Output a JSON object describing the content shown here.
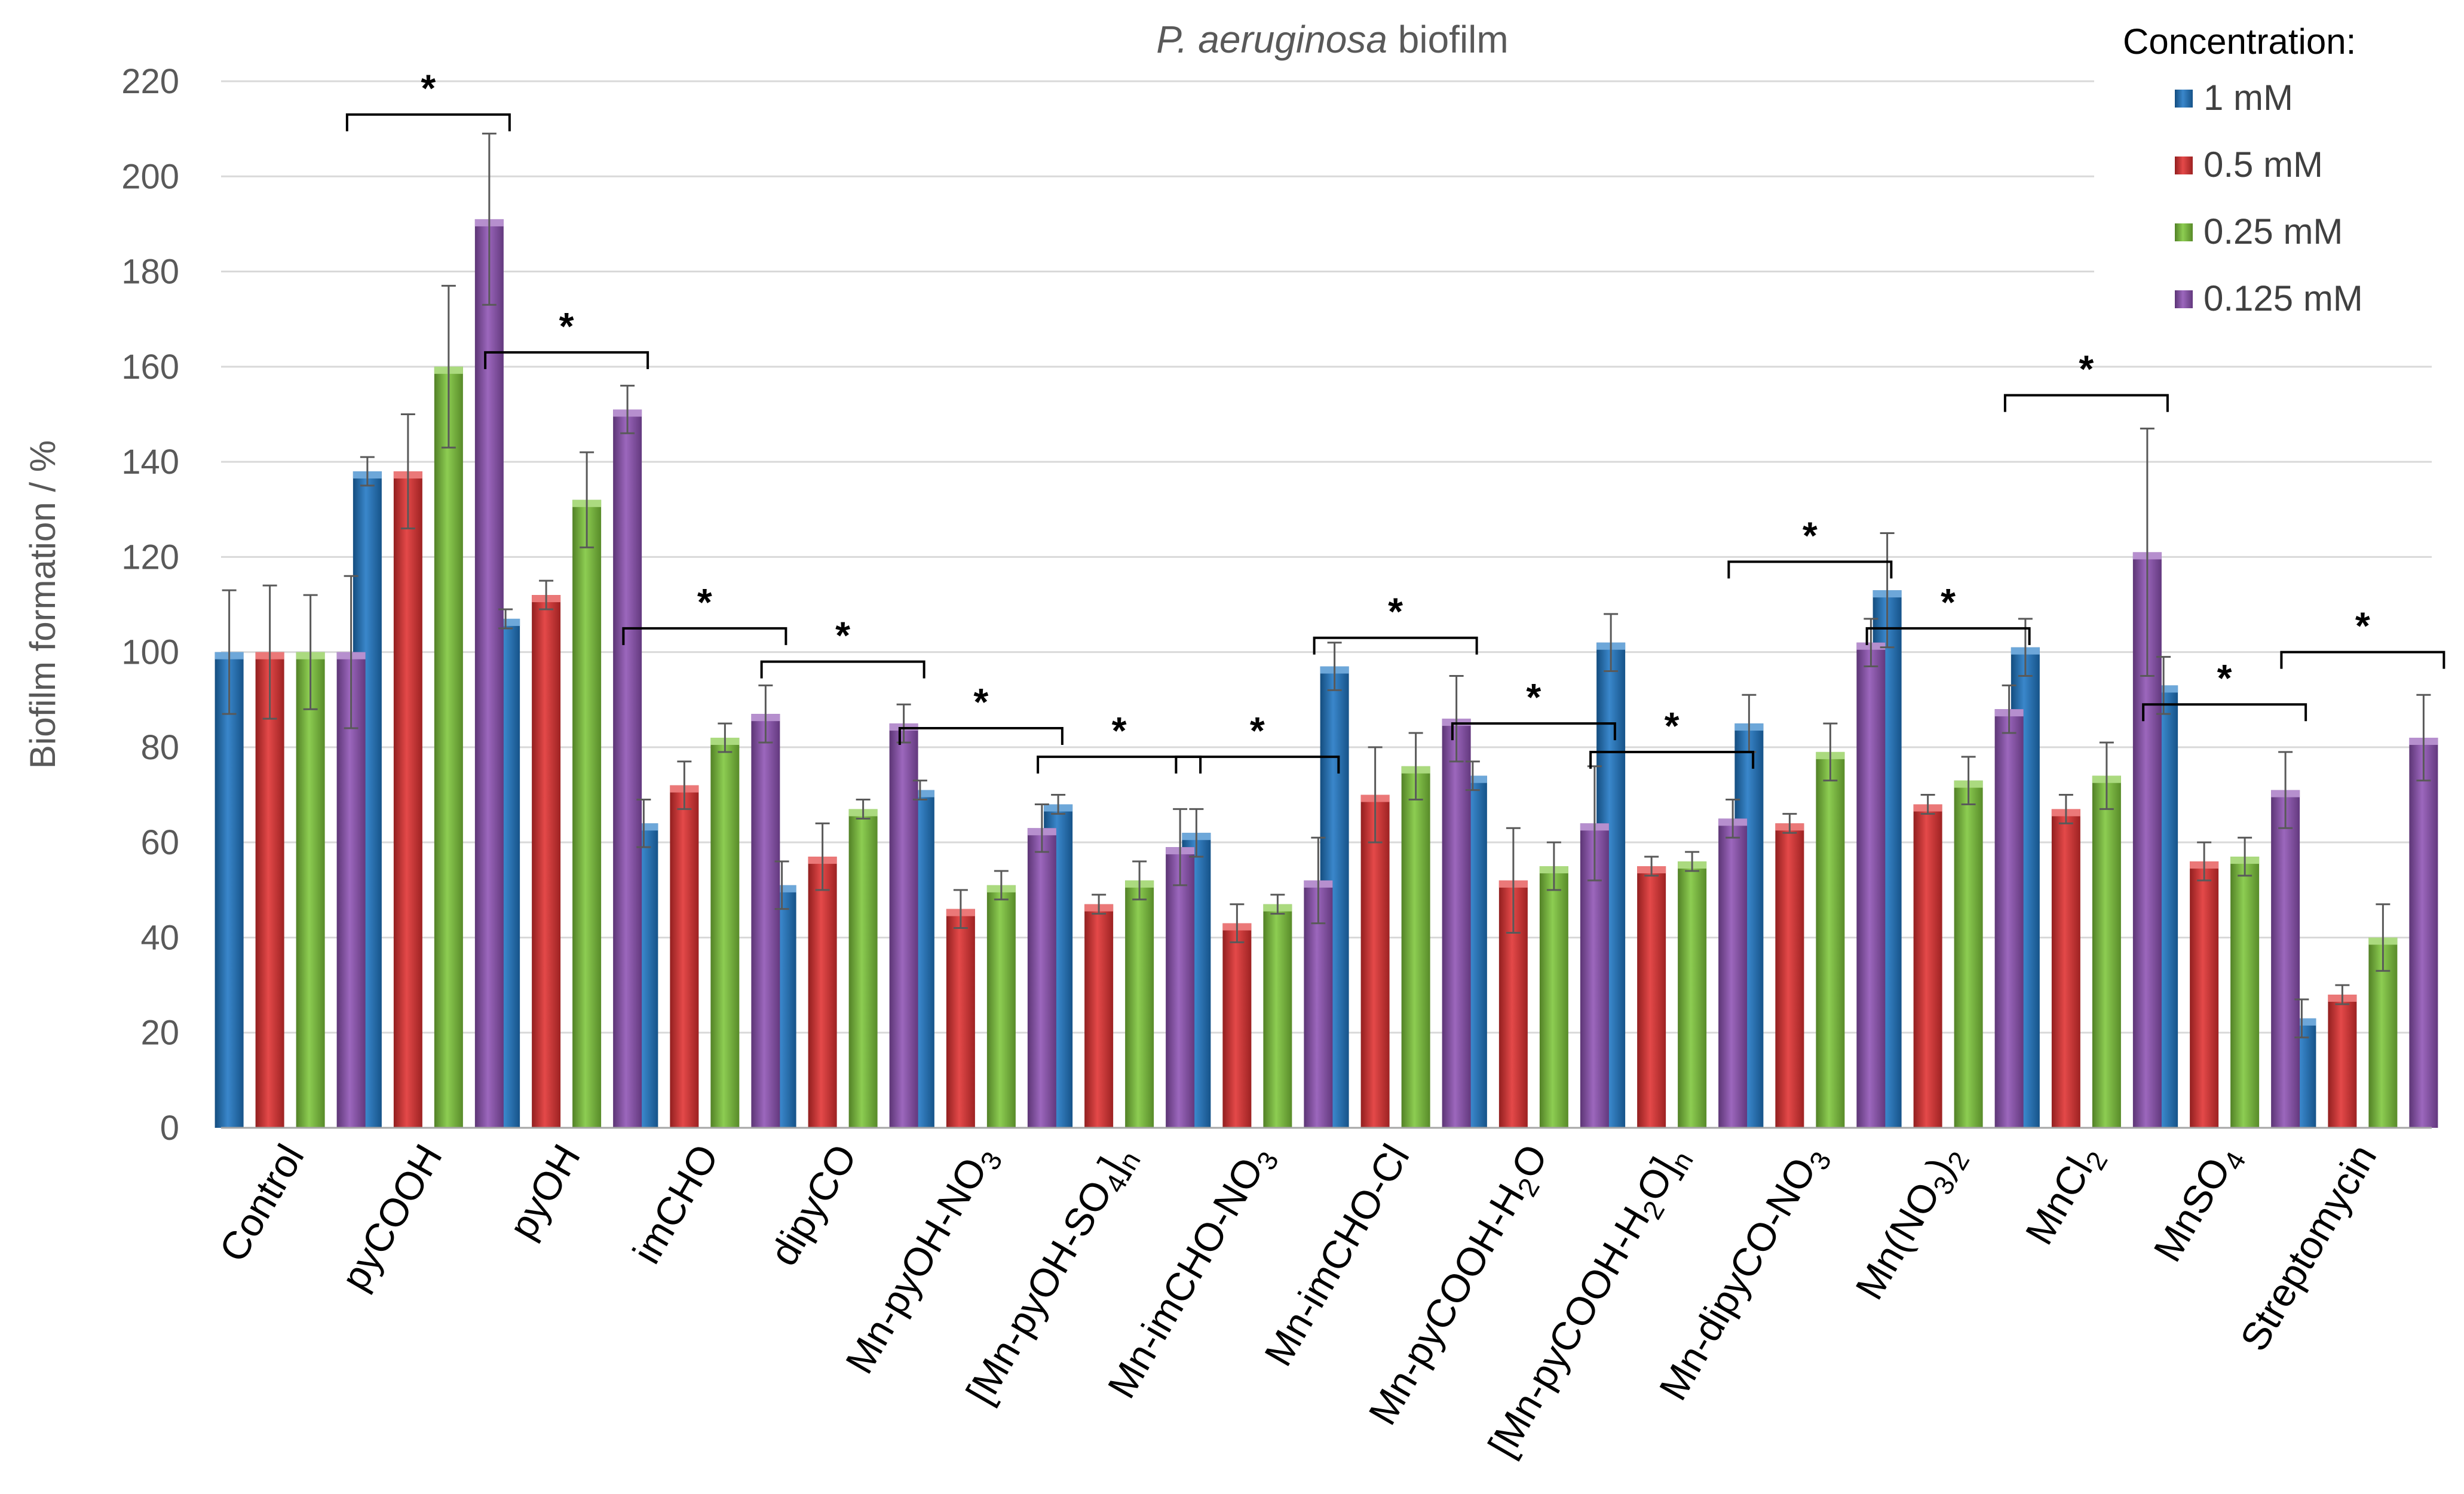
{
  "chart_data": {
    "type": "bar",
    "title_italic": "P. aeruginosa",
    "title_rest": " biofilm",
    "xlabel": "",
    "ylabel": "Biofilm formation / %",
    "ylim": [
      0,
      220
    ],
    "yticks": [
      0,
      20,
      40,
      60,
      80,
      100,
      120,
      140,
      160,
      180,
      200,
      220
    ],
    "grid": true,
    "legend_title": "Concentration:",
    "legend_position": "top-right",
    "significance_marker": "*",
    "categories": [
      {
        "base": "Control",
        "sub": "",
        "tail": ""
      },
      {
        "base": "pyCOOH",
        "sub": "",
        "tail": ""
      },
      {
        "base": "pyOH",
        "sub": "",
        "tail": ""
      },
      {
        "base": "imCHO",
        "sub": "",
        "tail": ""
      },
      {
        "base": "dipyCO",
        "sub": "",
        "tail": ""
      },
      {
        "base": "Mn-pyOH-NO",
        "sub": "3",
        "tail": ""
      },
      {
        "base": "[Mn-pyOH-SO",
        "sub": "4",
        "tail": "]n"
      },
      {
        "base": "Mn-imCHO-NO",
        "sub": "3",
        "tail": ""
      },
      {
        "base": "Mn-imCHO-Cl",
        "sub": "",
        "tail": ""
      },
      {
        "base": "Mn-pyCOOH-H",
        "sub": "2",
        "tail": "O"
      },
      {
        "base": "[Mn-pyCOOH-H",
        "sub": "2",
        "tail": "O]n"
      },
      {
        "base": "Mn-dipyCO-NO",
        "sub": "3",
        "tail": ""
      },
      {
        "base": "Mn(NO",
        "sub": "3",
        "tail": ")2"
      },
      {
        "base": "MnCl",
        "sub": "2",
        "tail": ""
      },
      {
        "base": "MnSO",
        "sub": "4",
        "tail": ""
      },
      {
        "base": "Streptomycin",
        "sub": "",
        "tail": ""
      }
    ],
    "series": [
      {
        "name": "1 mM",
        "color": "#1f77c4",
        "values": [
          100,
          138,
          107,
          64,
          51,
          71,
          68,
          62,
          97,
          74,
          102,
          85,
          113,
          101,
          93,
          23
        ],
        "errors": [
          13,
          3,
          2,
          5,
          5,
          2,
          2,
          5,
          5,
          3,
          6,
          6,
          12,
          6,
          6,
          4
        ]
      },
      {
        "name": "0.5 mM",
        "color": "#e03030",
        "values": [
          100,
          138,
          112,
          72,
          57,
          46,
          47,
          43,
          70,
          52,
          55,
          64,
          68,
          67,
          56,
          28
        ],
        "errors": [
          14,
          12,
          3,
          5,
          7,
          4,
          2,
          4,
          10,
          11,
          2,
          2,
          2,
          3,
          4,
          2
        ]
      },
      {
        "name": "0.25 mM",
        "color": "#7ec63a",
        "values": [
          100,
          160,
          132,
          82,
          67,
          51,
          52,
          47,
          76,
          55,
          56,
          79,
          73,
          74,
          57,
          40
        ],
        "errors": [
          12,
          17,
          10,
          3,
          2,
          3,
          4,
          2,
          7,
          5,
          2,
          6,
          5,
          7,
          4,
          7
        ]
      },
      {
        "name": "0.125 mM",
        "color": "#8e52b4",
        "values": [
          100,
          191,
          151,
          87,
          85,
          63,
          59,
          52,
          86,
          64,
          65,
          102,
          88,
          121,
          71,
          82
        ],
        "errors": [
          16,
          18,
          5,
          6,
          4,
          5,
          8,
          9,
          9,
          12,
          4,
          5,
          5,
          26,
          8,
          9
        ]
      }
    ],
    "significance": [
      {
        "category_index": 1,
        "y": 213
      },
      {
        "category_index": 2,
        "y": 163
      },
      {
        "category_index": 3,
        "y": 105
      },
      {
        "category_index": 4,
        "y": 98
      },
      {
        "category_index": 5,
        "y": 84
      },
      {
        "category_index": 6,
        "y": 78
      },
      {
        "category_index": 7,
        "y": 78
      },
      {
        "category_index": 8,
        "y": 103
      },
      {
        "category_index": 9,
        "y": 85
      },
      {
        "category_index": 10,
        "y": 79
      },
      {
        "category_index": 11,
        "y": 119
      },
      {
        "category_index": 12,
        "y": 105
      },
      {
        "category_index": 13,
        "y": 154
      },
      {
        "category_index": 14,
        "y": 89
      },
      {
        "category_index": 15,
        "y": 100
      }
    ]
  }
}
